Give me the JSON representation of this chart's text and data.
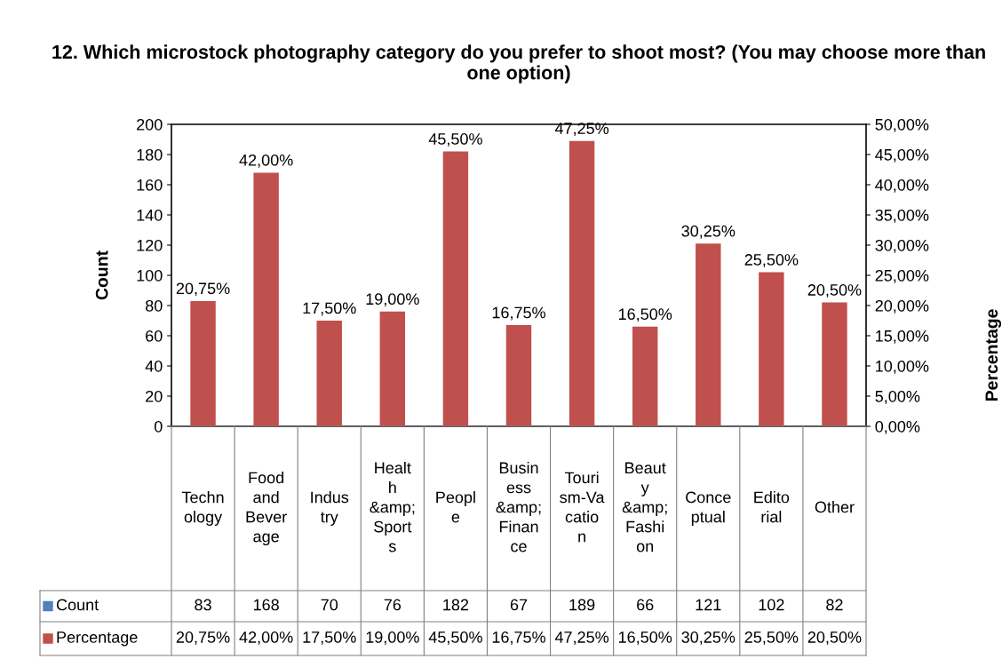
{
  "chart_data": {
    "type": "bar",
    "title": "12. Which microstock photography category do you prefer to shoot most? (You may choose more than one option)",
    "ylabel": "Count",
    "y2label": "Percentage",
    "categories": [
      "Technology",
      "Food and Beverage",
      "Industry",
      "Health &amp; Sports",
      "People",
      "Business &amp; Finance",
      "Tourism-Vacation",
      "Beauty &amp; Fashion",
      "Conceptual",
      "Editorial",
      "Other"
    ],
    "series": [
      {
        "name": "Count",
        "color": "#4f81bd",
        "values": [
          null,
          null,
          null,
          null,
          null,
          null,
          null,
          null,
          null,
          null,
          null
        ],
        "value_labels": [
          "83",
          "168",
          "70",
          "76",
          "182",
          "67",
          "189",
          "66",
          "121",
          "102",
          "82"
        ]
      },
      {
        "name": "Percentage",
        "color": "#c0504d",
        "axis": "y2",
        "values": [
          20.75,
          42.0,
          17.5,
          19.0,
          45.5,
          16.75,
          47.25,
          16.5,
          30.25,
          25.5,
          20.5
        ],
        "value_labels": [
          "20,75%",
          "42,00%",
          "17,50%",
          "19,00%",
          "45,50%",
          "16,75%",
          "47,25%",
          "16,50%",
          "30,25%",
          "25,50%",
          "20,50%"
        ]
      }
    ],
    "ylim": [
      0,
      200
    ],
    "yticks": [
      0,
      20,
      40,
      60,
      80,
      100,
      120,
      140,
      160,
      180,
      200
    ],
    "y2lim": [
      0,
      50
    ],
    "y2ticks": [
      {
        "value": 0,
        "label": "0,00%"
      },
      {
        "value": 5,
        "label": "5,00%"
      },
      {
        "value": 10,
        "label": "10,00%"
      },
      {
        "value": 15,
        "label": "15,00%"
      },
      {
        "value": 20,
        "label": "20,00%"
      },
      {
        "value": 25,
        "label": "25,00%"
      },
      {
        "value": 30,
        "label": "30,00%"
      },
      {
        "value": 35,
        "label": "35,00%"
      },
      {
        "value": 40,
        "label": "40,00%"
      },
      {
        "value": 45,
        "label": "45,00%"
      },
      {
        "value": 50,
        "label": "50,00%"
      }
    ],
    "grid": false
  }
}
